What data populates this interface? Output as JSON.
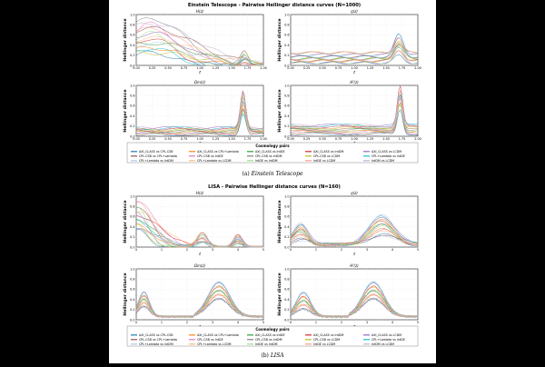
{
  "palette": [
    "#1f77b4",
    "#ff7f0e",
    "#2ca02c",
    "#d62728",
    "#9467bd",
    "#8c564b",
    "#e377c2",
    "#7f7f7f",
    "#bcbd22",
    "#17becf",
    "#aec7e8",
    "#ffbb78",
    "#98df8a",
    "#ff9896",
    "#c5b0d5"
  ],
  "legend": {
    "title": "Cosmology pairs",
    "items": [
      "AXI_CLASS vs CPL-CSB",
      "AXI_CLASS vs CPL+Lambda",
      "AXI_CLASS vs IntDE",
      "AXI_CLASS vs IntDM",
      "AXI_CLASS vs LCDM",
      "CPL-CSB vs CPL+Lambda",
      "CPL-CSB vs IntDE",
      "CPL-CSB vs IntDM",
      "CPL-CSB vs LCDM",
      "CPL+Lambda vs IntDE",
      "CPL+Lambda vs IntDM",
      "CPL+Lambda vs LCDM",
      "IntDE vs IntDM",
      "IntDE vs LCDM",
      "IntDM vs LCDM"
    ]
  },
  "figures": [
    {
      "id": "et",
      "title": "Einstein Telescope - Pairwise Hellinger distance curves (N=1000)",
      "caption_label": "(a)",
      "caption_text": "Einstein Telescope",
      "ylabel": "Hellinger distance",
      "xlabel": "z",
      "panels": [
        {
          "title": "H(z)",
          "profile": "et_h"
        },
        {
          "title": "q(z)",
          "profile": "et_q"
        },
        {
          "title": "Ωm(z)",
          "profile": "et_om"
        },
        {
          "title": "H'(z)",
          "profile": "et_hp"
        }
      ],
      "xticks": [
        "0.00",
        "0.25",
        "0.50",
        "0.75",
        "1.00",
        "1.25",
        "1.50",
        "1.75",
        "2.00"
      ],
      "yticks": [
        "0.0",
        "0.2",
        "0.4",
        "0.6",
        "0.8",
        "1.0"
      ]
    },
    {
      "id": "lisa",
      "title": "LISA - Pairwise Hellinger distance curves (N=160)",
      "caption_label": "(b)",
      "caption_text": "LISA",
      "ylabel": "Hellinger distance",
      "xlabel": "z",
      "panels": [
        {
          "title": "H(z)",
          "profile": "lisa_h"
        },
        {
          "title": "q(z)",
          "profile": "lisa_q"
        },
        {
          "title": "Ωm(z)",
          "profile": "lisa_om"
        },
        {
          "title": "H'(z)",
          "profile": "lisa_hp"
        }
      ],
      "xticks": [
        "0",
        "1",
        "2",
        "3",
        "4",
        "5"
      ],
      "yticks": [
        "0.0",
        "0.2",
        "0.4",
        "0.6",
        "0.8",
        "1.0"
      ]
    }
  ]
}
